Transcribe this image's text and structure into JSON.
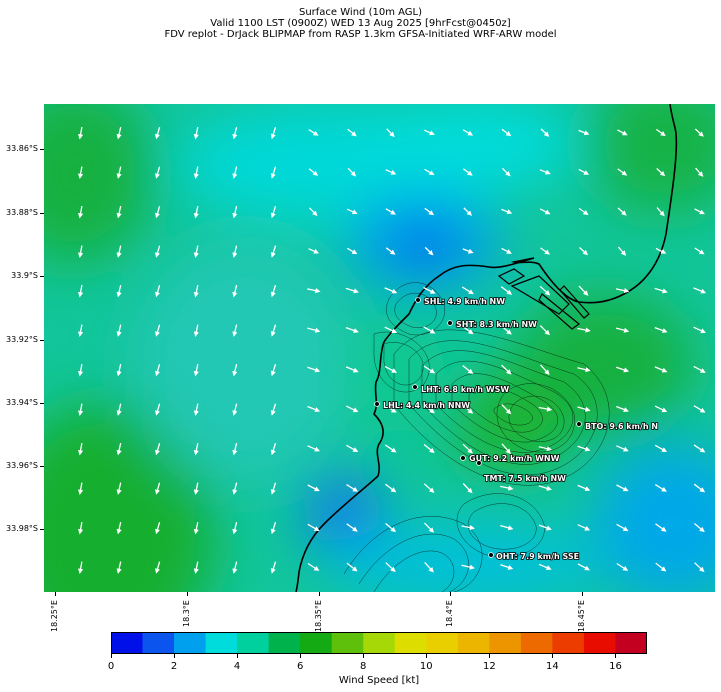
{
  "title": {
    "line1": "Surface Wind (10m AGL)",
    "line2": "Valid 1100 LST (0900Z) WED 13 Aug 2025 [9hrFcst@0450z]",
    "line3": "FDV replot - DrJack BLIPMAP from RASP 1.3km GFSA-Initiated WRF-ARW model"
  },
  "axes": {
    "y_ticks": [
      "33.86°S",
      "33.88°S",
      "33.9°S",
      "33.92°S",
      "33.94°S",
      "33.96°S",
      "33.98°S"
    ],
    "x_ticks": [
      "18.25°E",
      "18.3°E",
      "18.35°E",
      "18.4°E",
      "18.45°E"
    ]
  },
  "stations": [
    {
      "label": "SHL: 4.9 km/h NW"
    },
    {
      "label": "SHT: 8.3 km/h NW"
    },
    {
      "label": "LHT: 6.8 km/h WSW"
    },
    {
      "label": "LHL: 4.4 km/h NNW"
    },
    {
      "label": "BTO: 9.6 km/h N"
    },
    {
      "label": "GUT: 9.2 km/h WNW"
    },
    {
      "label": "TMT: 7.5 km/h NW"
    },
    {
      "label": "OHT: 7.9 km/h SSE"
    }
  ],
  "colorbar": {
    "label": "Wind Speed [kt]",
    "ticks": [
      "0",
      "2",
      "4",
      "6",
      "8",
      "10",
      "12",
      "14",
      "16"
    ],
    "min": 0,
    "max": 17,
    "colors": [
      "#0010e8",
      "#0b55ee",
      "#00a0ee",
      "#00dcdc",
      "#00cf9e",
      "#00b24c",
      "#13aa13",
      "#5ec00b",
      "#a6d808",
      "#dddd00",
      "#e9cf00",
      "#ebb500",
      "#ed9500",
      "#ed6a00",
      "#ec3c00",
      "#e80b00",
      "#c40020"
    ]
  }
}
